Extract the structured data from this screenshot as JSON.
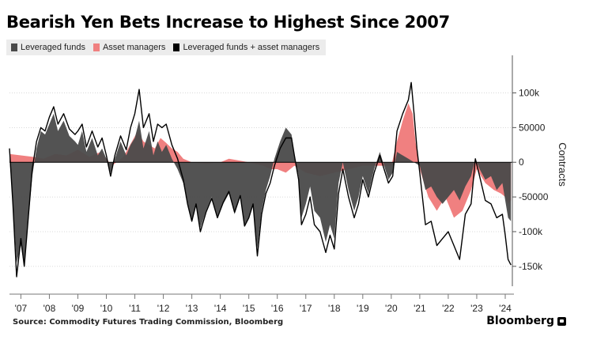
{
  "title": "Bearish Yen Bets Increase to Highest Since 2007",
  "source": "Source: Commodity Futures Trading Commission, Bloomberg",
  "brand": "Bloomberg",
  "colors": {
    "leveraged": "#4a4a4a",
    "asset": "#f08080",
    "combined": "#000000",
    "grid": "#cccccc",
    "zero": "#000000"
  },
  "chart_data": {
    "type": "area",
    "ylabel": "Contracts",
    "ylim": [
      -165000,
      145000
    ],
    "xlim": [
      2006.6,
      2024.25
    ],
    "y_ticks": [
      {
        "value": 100000,
        "label": "100k"
      },
      {
        "value": 50000,
        "label": "50000"
      },
      {
        "value": 0,
        "label": "0"
      },
      {
        "value": -50000,
        "label": "-50000"
      },
      {
        "value": -100000,
        "label": "-100k"
      },
      {
        "value": -150000,
        "label": "-150k"
      }
    ],
    "x_ticks": [
      {
        "value": 2007,
        "label": "'07"
      },
      {
        "value": 2008,
        "label": "'08"
      },
      {
        "value": 2009,
        "label": "'09"
      },
      {
        "value": 2010,
        "label": "'10"
      },
      {
        "value": 2011,
        "label": "'11"
      },
      {
        "value": 2012,
        "label": "'12"
      },
      {
        "value": 2013,
        "label": "'13"
      },
      {
        "value": 2014,
        "label": "'14"
      },
      {
        "value": 2015,
        "label": "'15"
      },
      {
        "value": 2016,
        "label": "'16"
      },
      {
        "value": 2017,
        "label": "'17"
      },
      {
        "value": 2018,
        "label": "'18"
      },
      {
        "value": 2019,
        "label": "'19"
      },
      {
        "value": 2020,
        "label": "'20"
      },
      {
        "value": 2021,
        "label": "'21"
      },
      {
        "value": 2022,
        "label": "'22"
      },
      {
        "value": 2023,
        "label": "'23"
      },
      {
        "value": 2024,
        "label": "'24"
      }
    ],
    "grid": "horizontal",
    "legend_position": "top-left",
    "series": [
      {
        "name": "Leveraged funds",
        "style": "area",
        "points": [
          [
            2006.6,
            8000
          ],
          [
            2006.72,
            -60000
          ],
          [
            2006.85,
            -145000
          ],
          [
            2007.0,
            -120000
          ],
          [
            2007.12,
            -150000
          ],
          [
            2007.25,
            -90000
          ],
          [
            2007.4,
            -20000
          ],
          [
            2007.55,
            20000
          ],
          [
            2007.7,
            45000
          ],
          [
            2007.85,
            40000
          ],
          [
            2008.0,
            55000
          ],
          [
            2008.15,
            70000
          ],
          [
            2008.3,
            45000
          ],
          [
            2008.5,
            60000
          ],
          [
            2008.7,
            38000
          ],
          [
            2008.9,
            30000
          ],
          [
            2009.0,
            25000
          ],
          [
            2009.15,
            45000
          ],
          [
            2009.3,
            15000
          ],
          [
            2009.5,
            35000
          ],
          [
            2009.7,
            10000
          ],
          [
            2009.85,
            20000
          ],
          [
            2010.0,
            5000
          ],
          [
            2010.15,
            -15000
          ],
          [
            2010.3,
            5000
          ],
          [
            2010.5,
            30000
          ],
          [
            2010.7,
            10000
          ],
          [
            2010.85,
            25000
          ],
          [
            2011.0,
            35000
          ],
          [
            2011.15,
            60000
          ],
          [
            2011.3,
            20000
          ],
          [
            2011.5,
            45000
          ],
          [
            2011.65,
            10000
          ],
          [
            2011.8,
            30000
          ],
          [
            2011.95,
            15000
          ],
          [
            2012.1,
            25000
          ],
          [
            2012.3,
            5000
          ],
          [
            2012.5,
            -10000
          ],
          [
            2012.7,
            -30000
          ],
          [
            2012.85,
            -60000
          ],
          [
            2013.0,
            -85000
          ],
          [
            2013.15,
            -60000
          ],
          [
            2013.3,
            -95000
          ],
          [
            2013.5,
            -70000
          ],
          [
            2013.7,
            -50000
          ],
          [
            2013.9,
            -80000
          ],
          [
            2014.1,
            -60000
          ],
          [
            2014.3,
            -45000
          ],
          [
            2014.5,
            -75000
          ],
          [
            2014.7,
            -50000
          ],
          [
            2014.85,
            -90000
          ],
          [
            2015.0,
            -80000
          ],
          [
            2015.15,
            -60000
          ],
          [
            2015.3,
            -125000
          ],
          [
            2015.45,
            -70000
          ],
          [
            2015.6,
            -40000
          ],
          [
            2015.75,
            -20000
          ],
          [
            2015.9,
            5000
          ],
          [
            2016.1,
            30000
          ],
          [
            2016.3,
            50000
          ],
          [
            2016.5,
            40000
          ],
          [
            2016.6,
            10000
          ],
          [
            2016.75,
            -20000
          ],
          [
            2016.85,
            -80000
          ],
          [
            2017.0,
            -60000
          ],
          [
            2017.15,
            -35000
          ],
          [
            2017.3,
            -70000
          ],
          [
            2017.5,
            -80000
          ],
          [
            2017.7,
            -115000
          ],
          [
            2017.85,
            -90000
          ],
          [
            2018.0,
            -110000
          ],
          [
            2018.15,
            -30000
          ],
          [
            2018.3,
            0
          ],
          [
            2018.5,
            -40000
          ],
          [
            2018.7,
            -70000
          ],
          [
            2018.85,
            -50000
          ],
          [
            2019.0,
            -20000
          ],
          [
            2019.2,
            -45000
          ],
          [
            2019.4,
            -10000
          ],
          [
            2019.6,
            15000
          ],
          [
            2019.75,
            -5000
          ],
          [
            2019.9,
            -25000
          ],
          [
            2020.05,
            -15000
          ],
          [
            2020.2,
            15000
          ],
          [
            2020.4,
            10000
          ],
          [
            2020.6,
            5000
          ],
          [
            2020.8,
            0
          ],
          [
            2021.0,
            -5000
          ],
          [
            2021.2,
            -40000
          ],
          [
            2021.4,
            -35000
          ],
          [
            2021.6,
            -50000
          ],
          [
            2021.8,
            -60000
          ],
          [
            2022.0,
            -50000
          ],
          [
            2022.2,
            -40000
          ],
          [
            2022.4,
            -55000
          ],
          [
            2022.6,
            -35000
          ],
          [
            2022.8,
            -20000
          ],
          [
            2022.95,
            5000
          ],
          [
            2023.1,
            -10000
          ],
          [
            2023.3,
            -25000
          ],
          [
            2023.5,
            -20000
          ],
          [
            2023.7,
            -40000
          ],
          [
            2023.9,
            -30000
          ],
          [
            2024.0,
            -55000
          ],
          [
            2024.1,
            -80000
          ],
          [
            2024.2,
            -85000
          ]
        ]
      },
      {
        "name": "Asset managers",
        "style": "area",
        "points": [
          [
            2006.6,
            12000
          ],
          [
            2007.0,
            10000
          ],
          [
            2007.4,
            8000
          ],
          [
            2007.8,
            5000
          ],
          [
            2008.2,
            12000
          ],
          [
            2008.6,
            10000
          ],
          [
            2009.0,
            18000
          ],
          [
            2009.4,
            8000
          ],
          [
            2009.8,
            15000
          ],
          [
            2010.2,
            -5000
          ],
          [
            2010.6,
            8000
          ],
          [
            2010.9,
            30000
          ],
          [
            2011.1,
            45000
          ],
          [
            2011.3,
            30000
          ],
          [
            2011.5,
            25000
          ],
          [
            2011.7,
            20000
          ],
          [
            2011.9,
            35000
          ],
          [
            2012.1,
            28000
          ],
          [
            2012.3,
            20000
          ],
          [
            2012.5,
            15000
          ],
          [
            2012.7,
            5000
          ],
          [
            2013.0,
            0
          ],
          [
            2013.5,
            -2000
          ],
          [
            2014.0,
            0
          ],
          [
            2014.3,
            5000
          ],
          [
            2014.6,
            3000
          ],
          [
            2015.0,
            0
          ],
          [
            2015.5,
            -5000
          ],
          [
            2015.8,
            -10000
          ],
          [
            2016.0,
            -10000
          ],
          [
            2016.3,
            -15000
          ],
          [
            2016.6,
            -5000
          ],
          [
            2017.0,
            -15000
          ],
          [
            2017.5,
            -20000
          ],
          [
            2018.0,
            -15000
          ],
          [
            2018.5,
            -10000
          ],
          [
            2019.0,
            -5000
          ],
          [
            2019.5,
            -5000
          ],
          [
            2020.0,
            -5000
          ],
          [
            2020.2,
            30000
          ],
          [
            2020.4,
            60000
          ],
          [
            2020.6,
            85000
          ],
          [
            2020.75,
            70000
          ],
          [
            2020.85,
            30000
          ],
          [
            2021.0,
            -10000
          ],
          [
            2021.3,
            -50000
          ],
          [
            2021.6,
            -70000
          ],
          [
            2021.9,
            -50000
          ],
          [
            2022.2,
            -80000
          ],
          [
            2022.5,
            -70000
          ],
          [
            2022.8,
            -40000
          ],
          [
            2023.0,
            -10000
          ],
          [
            2023.3,
            -30000
          ],
          [
            2023.6,
            -40000
          ],
          [
            2023.85,
            -45000
          ],
          [
            2024.0,
            -50000
          ],
          [
            2024.1,
            -60000
          ],
          [
            2024.2,
            -55000
          ]
        ]
      },
      {
        "name": "Leveraged funds + asset managers",
        "style": "line",
        "points": [
          [
            2006.6,
            20000
          ],
          [
            2006.72,
            -60000
          ],
          [
            2006.85,
            -165000
          ],
          [
            2007.0,
            -110000
          ],
          [
            2007.12,
            -150000
          ],
          [
            2007.25,
            -85000
          ],
          [
            2007.4,
            -10000
          ],
          [
            2007.55,
            30000
          ],
          [
            2007.7,
            50000
          ],
          [
            2007.85,
            45000
          ],
          [
            2008.0,
            65000
          ],
          [
            2008.15,
            80000
          ],
          [
            2008.3,
            55000
          ],
          [
            2008.5,
            70000
          ],
          [
            2008.7,
            48000
          ],
          [
            2008.9,
            40000
          ],
          [
            2009.0,
            45000
          ],
          [
            2009.15,
            55000
          ],
          [
            2009.3,
            22000
          ],
          [
            2009.5,
            45000
          ],
          [
            2009.7,
            22000
          ],
          [
            2009.85,
            35000
          ],
          [
            2010.0,
            10000
          ],
          [
            2010.15,
            -20000
          ],
          [
            2010.3,
            10000
          ],
          [
            2010.5,
            38000
          ],
          [
            2010.7,
            18000
          ],
          [
            2010.85,
            50000
          ],
          [
            2011.0,
            70000
          ],
          [
            2011.15,
            105000
          ],
          [
            2011.3,
            50000
          ],
          [
            2011.5,
            70000
          ],
          [
            2011.65,
            30000
          ],
          [
            2011.8,
            55000
          ],
          [
            2011.95,
            50000
          ],
          [
            2012.1,
            55000
          ],
          [
            2012.3,
            25000
          ],
          [
            2012.5,
            5000
          ],
          [
            2012.7,
            -25000
          ],
          [
            2012.85,
            -60000
          ],
          [
            2013.0,
            -85000
          ],
          [
            2013.15,
            -60000
          ],
          [
            2013.3,
            -100000
          ],
          [
            2013.5,
            -72000
          ],
          [
            2013.7,
            -52000
          ],
          [
            2013.9,
            -80000
          ],
          [
            2014.1,
            -58000
          ],
          [
            2014.3,
            -42000
          ],
          [
            2014.5,
            -72000
          ],
          [
            2014.7,
            -48000
          ],
          [
            2014.85,
            -92000
          ],
          [
            2015.0,
            -80000
          ],
          [
            2015.15,
            -60000
          ],
          [
            2015.3,
            -135000
          ],
          [
            2015.45,
            -75000
          ],
          [
            2015.6,
            -45000
          ],
          [
            2015.75,
            -30000
          ],
          [
            2015.9,
            -5000
          ],
          [
            2016.1,
            20000
          ],
          [
            2016.3,
            35000
          ],
          [
            2016.5,
            35000
          ],
          [
            2016.6,
            10000
          ],
          [
            2016.75,
            -25000
          ],
          [
            2016.85,
            -90000
          ],
          [
            2017.0,
            -75000
          ],
          [
            2017.15,
            -50000
          ],
          [
            2017.3,
            -90000
          ],
          [
            2017.5,
            -100000
          ],
          [
            2017.7,
            -130000
          ],
          [
            2017.85,
            -105000
          ],
          [
            2018.0,
            -125000
          ],
          [
            2018.15,
            -45000
          ],
          [
            2018.3,
            -10000
          ],
          [
            2018.5,
            -50000
          ],
          [
            2018.7,
            -80000
          ],
          [
            2018.85,
            -60000
          ],
          [
            2019.0,
            -25000
          ],
          [
            2019.2,
            -50000
          ],
          [
            2019.4,
            -15000
          ],
          [
            2019.6,
            10000
          ],
          [
            2019.75,
            -10000
          ],
          [
            2019.9,
            -30000
          ],
          [
            2020.05,
            -20000
          ],
          [
            2020.2,
            45000
          ],
          [
            2020.4,
            70000
          ],
          [
            2020.6,
            90000
          ],
          [
            2020.7,
            115000
          ],
          [
            2020.8,
            70000
          ],
          [
            2020.9,
            20000
          ],
          [
            2021.0,
            -15000
          ],
          [
            2021.2,
            -90000
          ],
          [
            2021.4,
            -85000
          ],
          [
            2021.6,
            -120000
          ],
          [
            2021.8,
            -110000
          ],
          [
            2022.0,
            -100000
          ],
          [
            2022.2,
            -120000
          ],
          [
            2022.4,
            -140000
          ],
          [
            2022.6,
            -75000
          ],
          [
            2022.8,
            -60000
          ],
          [
            2022.95,
            5000
          ],
          [
            2023.1,
            -20000
          ],
          [
            2023.3,
            -55000
          ],
          [
            2023.5,
            -60000
          ],
          [
            2023.7,
            -80000
          ],
          [
            2023.9,
            -75000
          ],
          [
            2024.0,
            -105000
          ],
          [
            2024.1,
            -140000
          ],
          [
            2024.2,
            -148000
          ]
        ]
      }
    ]
  }
}
